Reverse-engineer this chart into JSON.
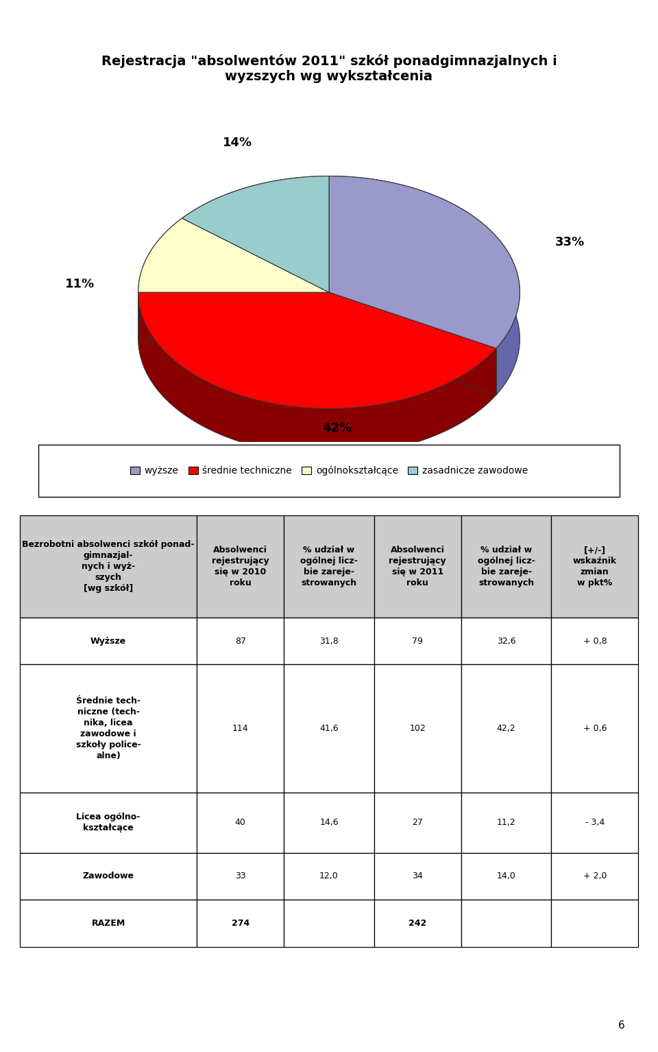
{
  "title": "Rejestracja \"absolwentów 2011\" szkół ponadgimnazjalnych i\nwyzszych wg wykształcenia",
  "pie_values": [
    33,
    42,
    11,
    14
  ],
  "pie_labels": [
    "33%",
    "42%",
    "11%",
    "14%"
  ],
  "pie_colors": [
    "#9999CC",
    "#FF0000",
    "#FFFFCC",
    "#99CCCC"
  ],
  "pie_side_colors": [
    "#6666AA",
    "#880000",
    "#AAAA88",
    "#669999"
  ],
  "pie_edge_color": "#333333",
  "legend_labels": [
    "wyższe",
    "średnie techniczne",
    "ogólnokształcące",
    "zasadnicze zawodowe"
  ],
  "legend_colors": [
    "#9999CC",
    "#FF0000",
    "#FFFFCC",
    "#99CCCC"
  ],
  "table_col_header": "Bezrobotni absolwenci szkół ponad-\ngimnazjal-\nnych i wyż-\nszych\n[wg szkół]",
  "table_headers": [
    "Absolwenci\nrejestrujący\nsię w 2010\nroku",
    "% udział w\nogólnej licz-\nbie zareje-\nstrowanych",
    "Absolwenci\nrejestrujący\nsię w 2011\nroku",
    "% udział w\nogólnej licz-\nbie zareje-\nstrowanych",
    "[+/-]\nwskaźnik\nzmian\nw pkt%"
  ],
  "table_rows": [
    [
      "Wyższe",
      "87",
      "31,8",
      "79",
      "32,6",
      "+ 0,8"
    ],
    [
      "Średnie tech-\nniczne (tech-\nnika, licea\nzawodowe i\nszkoły police-\nalne)",
      "114",
      "41,6",
      "102",
      "42,2",
      "+ 0,6"
    ],
    [
      "Licea ogólno-\nkształcące",
      "40",
      "14,6",
      "27",
      "11,2",
      "- 3,4"
    ],
    [
      "Zawodowe",
      "33",
      "12,0",
      "34",
      "14,0",
      "+ 2,0"
    ],
    [
      "RAZEM",
      "274",
      "",
      "242",
      "",
      ""
    ]
  ],
  "header_bg": "#CCCCCC",
  "row_bg": "#FFFFFF",
  "background_color": "#FFFFFF",
  "page_number": "6"
}
